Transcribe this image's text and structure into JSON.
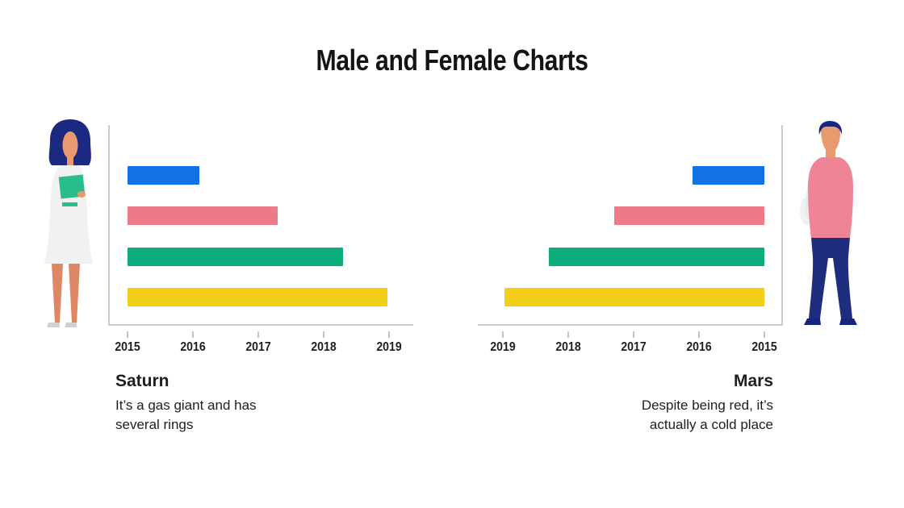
{
  "slide": {
    "title": "Male and Female Charts"
  },
  "captions": {
    "saturn": {
      "title": "Saturn",
      "line1": "It’s a gas giant and has",
      "line2": "several rings"
    },
    "mars": {
      "title": "Mars",
      "line1": "Despite being red, it’s",
      "line2": "actually a cold place"
    }
  },
  "figures": {
    "left": "woman-with-notebook-illustration",
    "right": "man-with-shoulder-bag-illustration"
  },
  "colors": {
    "bar_blue": "#1272E3",
    "bar_pink": "#EC7B87",
    "bar_green": "#0DAE7D",
    "bar_yellow": "#F3CE19",
    "axis": "#C9CBCC",
    "text": "#1E1E1E"
  },
  "chart_data": [
    {
      "type": "bar",
      "orientation": "horizontal",
      "title": "Saturn",
      "subtitle": "It’s a gas giant and has several rings",
      "x_axis": {
        "min": 2015,
        "max": 2019,
        "ticks": [
          "2015",
          "2016",
          "2017",
          "2018",
          "2019"
        ],
        "reversed": false
      },
      "grid": false,
      "legend": false,
      "bars": [
        {
          "color": "#1272E3",
          "start": 2015,
          "end": 2016.1
        },
        {
          "color": "#EC7B87",
          "start": 2015,
          "end": 2017.3
        },
        {
          "color": "#0DAE7D",
          "start": 2015,
          "end": 2018.3
        },
        {
          "color": "#F3CE19",
          "start": 2015,
          "end": 2018.97
        }
      ]
    },
    {
      "type": "bar",
      "orientation": "horizontal",
      "title": "Mars",
      "subtitle": "Despite being red, it’s actually a cold place",
      "x_axis": {
        "min": 2015,
        "max": 2019,
        "ticks": [
          "2019",
          "2018",
          "2017",
          "2016",
          "2015"
        ],
        "reversed": true
      },
      "grid": false,
      "legend": false,
      "bars": [
        {
          "color": "#1272E3",
          "start": 2015,
          "end": 2016.1
        },
        {
          "color": "#EC7B87",
          "start": 2015,
          "end": 2017.3
        },
        {
          "color": "#0DAE7D",
          "start": 2015,
          "end": 2018.3
        },
        {
          "color": "#F3CE19",
          "start": 2015,
          "end": 2018.97
        }
      ]
    }
  ]
}
